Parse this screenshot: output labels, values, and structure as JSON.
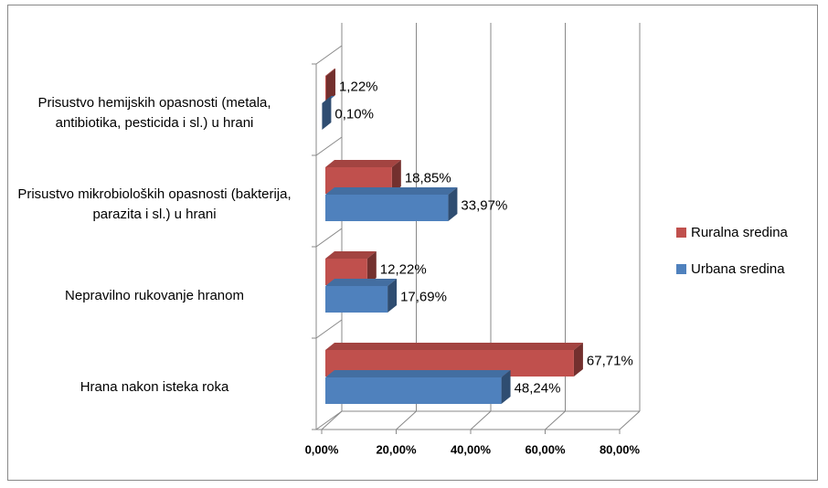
{
  "chart_data": {
    "type": "bar3d_horizontal",
    "categories": [
      "Hrana nakon isteka roka",
      "Nepravilno rukovanje hranom",
      "Prisustvo mikrobioloških opasnosti (bakterija, parazita i sl.) u hrani",
      "Prisustvo hemijskih opasnosti (metala, antibiotika, pesticida i sl.) u hrani"
    ],
    "series": [
      {
        "name": "Ruralna sredina",
        "color": "#c0504d",
        "values": [
          67.71,
          12.22,
          18.85,
          1.22
        ],
        "value_labels": [
          "67,71%",
          "12,22%",
          "18,85%",
          "1,22%"
        ]
      },
      {
        "name": "Urbana sredina",
        "color": "#4f81bd",
        "values": [
          48.24,
          17.69,
          33.97,
          0.1
        ],
        "value_labels": [
          "48,24%",
          "17,69%",
          "33,97%",
          "0,10%"
        ]
      }
    ],
    "xlim": [
      0,
      80
    ],
    "xticks": [
      {
        "value": 0,
        "label": "0,00%"
      },
      {
        "value": 20,
        "label": "20,00%"
      },
      {
        "value": 40,
        "label": "40,00%"
      },
      {
        "value": 60,
        "label": "60,00%"
      },
      {
        "value": 80,
        "label": "80,00%"
      }
    ],
    "grid": true,
    "legend": "right"
  }
}
